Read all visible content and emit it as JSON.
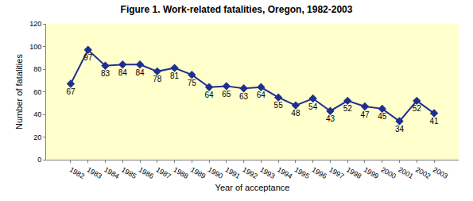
{
  "chart_data": {
    "type": "line",
    "title": "Figure 1. Work-related fatalities, Oregon, 1982-2003",
    "x_label": "Year of acceptance",
    "y_label": "Number of fatalities",
    "categories": [
      "1982",
      "1983",
      "1984",
      "1985",
      "1986",
      "1987",
      "1988",
      "1989",
      "1990",
      "1991",
      "1992",
      "1993",
      "1994",
      "1995",
      "1996",
      "1997",
      "1998",
      "1999",
      "2000",
      "2001",
      "2002",
      "2003"
    ],
    "values": [
      67,
      97,
      83,
      84,
      84,
      78,
      81,
      75,
      64,
      65,
      63,
      64,
      55,
      48,
      54,
      43,
      52,
      47,
      45,
      34,
      52,
      41
    ],
    "color": "#1f2f8f",
    "marker": "diamond",
    "data_labels": true,
    "grid": false,
    "ylim": [
      0,
      120
    ],
    "yticks": [
      0,
      20,
      40,
      60,
      80,
      100,
      120
    ]
  }
}
